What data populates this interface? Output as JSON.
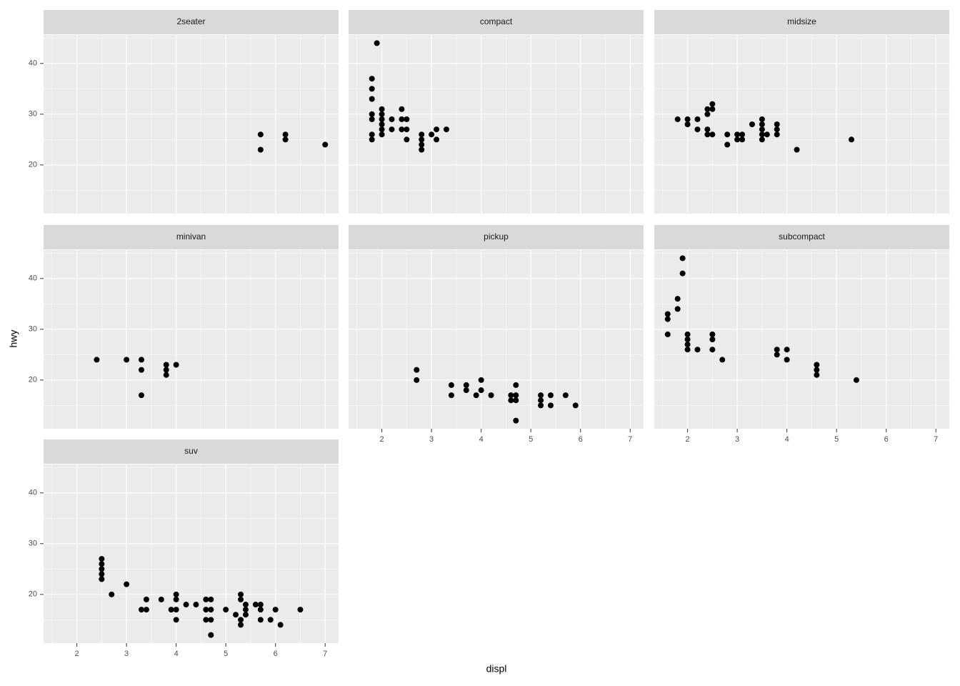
{
  "xlabel": "displ",
  "ylabel": "hwy",
  "chart_data": [
    {
      "type": "scatter",
      "title": "2seater",
      "color": "#000000",
      "x": [
        5.7,
        5.7,
        6.2,
        6.2,
        7
      ],
      "y": [
        26,
        23,
        26,
        25,
        24
      ],
      "xlim": [
        1.33,
        7.27
      ],
      "ylim": [
        10.4,
        45.6
      ],
      "xticks": [
        2,
        3,
        4,
        5,
        6,
        7
      ],
      "yticks": [
        20,
        30,
        40
      ],
      "xminor": [
        1.5,
        2.5,
        3.5,
        4.5,
        5.5,
        6.5
      ],
      "yminor": [
        15,
        25,
        35,
        45
      ],
      "grid": true
    },
    {
      "type": "scatter",
      "title": "compact",
      "color": "#000000",
      "x": [
        1.8,
        1.8,
        1.8,
        1.8,
        1.8,
        1.8,
        1.8,
        1.9,
        2,
        2,
        2,
        2,
        2,
        2,
        2.2,
        2.2,
        2.4,
        2.4,
        2.4,
        2.5,
        2.5,
        2.5,
        2.8,
        2.8,
        2.8,
        2.8,
        3,
        3.1,
        3.1,
        3.3
      ],
      "y": [
        37,
        35,
        33,
        30,
        29,
        26,
        25,
        44,
        31,
        30,
        29,
        28,
        27,
        26,
        29,
        27,
        31,
        29,
        27,
        29,
        27,
        25,
        26,
        25,
        24,
        23,
        26,
        27,
        25,
        27
      ],
      "xlim": [
        1.33,
        7.27
      ],
      "ylim": [
        10.4,
        45.6
      ],
      "xticks": [
        2,
        3,
        4,
        5,
        6,
        7
      ],
      "yticks": [
        20,
        30,
        40
      ],
      "xminor": [
        1.5,
        2.5,
        3.5,
        4.5,
        5.5,
        6.5
      ],
      "yminor": [
        15,
        25,
        35,
        45
      ],
      "grid": true
    },
    {
      "type": "scatter",
      "title": "midsize",
      "color": "#000000",
      "x": [
        1.8,
        2,
        2,
        2.2,
        2.2,
        2.4,
        2.4,
        2.4,
        2.4,
        2.5,
        2.5,
        2.5,
        2.8,
        2.8,
        3,
        3,
        3.1,
        3.1,
        3.3,
        3.5,
        3.5,
        3.5,
        3.5,
        3.5,
        3.6,
        3.8,
        3.8,
        3.8,
        4.2,
        5.3
      ],
      "y": [
        29,
        29,
        28,
        29,
        27,
        31,
        30,
        27,
        26,
        32,
        31,
        26,
        26,
        24,
        26,
        25,
        26,
        25,
        28,
        29,
        28,
        27,
        26,
        25,
        26,
        28,
        27,
        26,
        23,
        25
      ],
      "xlim": [
        1.33,
        7.27
      ],
      "ylim": [
        10.4,
        45.6
      ],
      "xticks": [
        2,
        3,
        4,
        5,
        6,
        7
      ],
      "yticks": [
        20,
        30,
        40
      ],
      "xminor": [
        1.5,
        2.5,
        3.5,
        4.5,
        5.5,
        6.5
      ],
      "yminor": [
        15,
        25,
        35,
        45
      ],
      "grid": true
    },
    {
      "type": "scatter",
      "title": "minivan",
      "color": "#000000",
      "x": [
        2.4,
        3,
        3.3,
        3.3,
        3.3,
        3.8,
        3.8,
        3.8,
        4
      ],
      "y": [
        24,
        24,
        24,
        22,
        17,
        23,
        22,
        21,
        23
      ],
      "xlim": [
        1.33,
        7.27
      ],
      "ylim": [
        10.4,
        45.6
      ],
      "xticks": [
        2,
        3,
        4,
        5,
        6,
        7
      ],
      "yticks": [
        20,
        30,
        40
      ],
      "xminor": [
        1.5,
        2.5,
        3.5,
        4.5,
        5.5,
        6.5
      ],
      "yminor": [
        15,
        25,
        35,
        45
      ],
      "grid": true
    },
    {
      "type": "scatter",
      "title": "pickup",
      "color": "#000000",
      "x": [
        2.7,
        2.7,
        3.4,
        3.4,
        3.7,
        3.7,
        3.9,
        4,
        4,
        4.2,
        4.6,
        4.6,
        4.7,
        4.7,
        4.7,
        4.7,
        5.2,
        5.2,
        5.2,
        5.4,
        5.4,
        5.7,
        5.9
      ],
      "y": [
        22,
        20,
        19,
        17,
        19,
        18,
        17,
        20,
        18,
        17,
        17,
        16,
        19,
        17,
        16,
        12,
        17,
        16,
        15,
        17,
        15,
        17,
        15
      ],
      "xlim": [
        1.33,
        7.27
      ],
      "ylim": [
        10.4,
        45.6
      ],
      "xticks": [
        2,
        3,
        4,
        5,
        6,
        7
      ],
      "yticks": [
        20,
        30,
        40
      ],
      "xminor": [
        1.5,
        2.5,
        3.5,
        4.5,
        5.5,
        6.5
      ],
      "yminor": [
        15,
        25,
        35,
        45
      ],
      "grid": true
    },
    {
      "type": "scatter",
      "title": "subcompact",
      "color": "#000000",
      "x": [
        1.6,
        1.6,
        1.6,
        1.8,
        1.8,
        1.9,
        1.9,
        2,
        2,
        2,
        2,
        2.2,
        2.5,
        2.5,
        2.5,
        2.7,
        3.8,
        3.8,
        4,
        4,
        4.6,
        4.6,
        4.6,
        5.4
      ],
      "y": [
        33,
        32,
        29,
        36,
        34,
        44,
        41,
        29,
        28,
        27,
        26,
        26,
        29,
        28,
        26,
        24,
        26,
        25,
        26,
        24,
        23,
        22,
        21,
        20
      ],
      "xlim": [
        1.33,
        7.27
      ],
      "ylim": [
        10.4,
        45.6
      ],
      "xticks": [
        2,
        3,
        4,
        5,
        6,
        7
      ],
      "yticks": [
        20,
        30,
        40
      ],
      "xminor": [
        1.5,
        2.5,
        3.5,
        4.5,
        5.5,
        6.5
      ],
      "yminor": [
        15,
        25,
        35,
        45
      ],
      "grid": true
    },
    {
      "type": "scatter",
      "title": "suv",
      "color": "#000000",
      "x": [
        2.5,
        2.5,
        2.5,
        2.5,
        2.5,
        2.7,
        3,
        3.3,
        3.4,
        3.4,
        3.7,
        3.9,
        4,
        4,
        4,
        4,
        4.2,
        4.4,
        4.6,
        4.6,
        4.6,
        4.7,
        4.7,
        4.7,
        4.7,
        5,
        5.2,
        5.3,
        5.3,
        5.3,
        5.3,
        5.4,
        5.4,
        5.4,
        5.6,
        5.7,
        5.7,
        5.7,
        5.9,
        6,
        6.1,
        6.5
      ],
      "y": [
        27,
        26,
        25,
        24,
        23,
        20,
        22,
        17,
        19,
        17,
        19,
        17,
        20,
        19,
        17,
        15,
        18,
        18,
        19,
        17,
        15,
        19,
        17,
        15,
        12,
        17,
        16,
        20,
        19,
        15,
        14,
        18,
        17,
        16,
        18,
        18,
        17,
        15,
        15,
        17,
        14,
        17
      ],
      "xlim": [
        1.33,
        7.27
      ],
      "ylim": [
        10.4,
        45.6
      ],
      "xticks": [
        2,
        3,
        4,
        5,
        6,
        7
      ],
      "yticks": [
        20,
        30,
        40
      ],
      "xminor": [
        1.5,
        2.5,
        3.5,
        4.5,
        5.5,
        6.5
      ],
      "yminor": [
        15,
        25,
        35,
        45
      ],
      "grid": true
    }
  ]
}
